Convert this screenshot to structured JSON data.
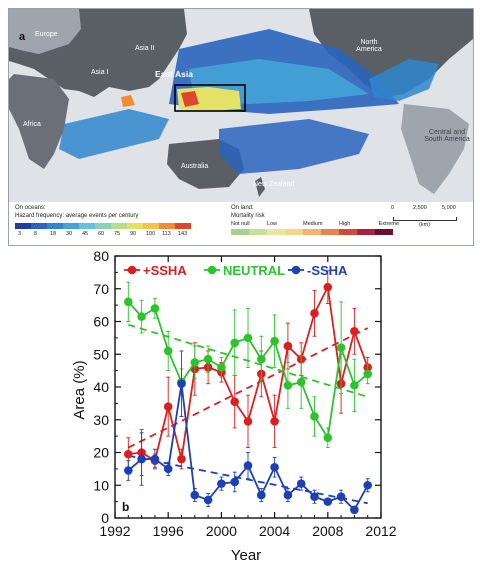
{
  "panel_a": {
    "letter": "a",
    "regions": [
      "Europe",
      "Asia II",
      "Asia I",
      "North America",
      "East Asia",
      "Africa",
      "Australia",
      "Central and South America",
      "New Zealand"
    ],
    "legend": {
      "oceans_title": "On oceans:",
      "oceans_subtitle": "Hazard frequency: average events per century",
      "ocean_ticks": [
        "3",
        "8",
        "18",
        "30",
        "45",
        "60",
        "75",
        "90",
        "100",
        "113",
        "143"
      ],
      "ocean_colors": [
        "#1f3f9c",
        "#2a64bd",
        "#2f86cc",
        "#43a3d6",
        "#67c1d8",
        "#8fd0b8",
        "#b9dc8a",
        "#e3e267",
        "#f6c244",
        "#f28c34",
        "#e0452d"
      ],
      "land_title": "On land:",
      "land_subtitle": "Mortality risk",
      "land_ticks": [
        "Not null",
        "Low",
        "Medium",
        "High",
        "Extreme"
      ],
      "land_colors": [
        "#a9cf8c",
        "#c7e09a",
        "#e8e7a0",
        "#f3d784",
        "#f0b56a",
        "#e48551",
        "#cc4b3c",
        "#a9233a",
        "#6d0d2c"
      ],
      "scale_ticks": [
        "0",
        "2,500",
        "5,000"
      ],
      "scale_unit": "(km)"
    }
  },
  "chart_data": {
    "type": "line",
    "panel_letter": "b",
    "xlabel": "Year",
    "ylabel": "Area (%)",
    "xlim": [
      1992,
      2012
    ],
    "ylim": [
      0,
      80
    ],
    "xticks": [
      1992,
      1996,
      2000,
      2004,
      2008,
      2012
    ],
    "yticks": [
      0,
      10,
      20,
      30,
      40,
      50,
      60,
      70,
      80
    ],
    "x": [
      1993,
      1994,
      1995,
      1996,
      1997,
      1998,
      1999,
      2000,
      2001,
      2002,
      2003,
      2004,
      2005,
      2006,
      2007,
      2008,
      2009,
      2010,
      2011
    ],
    "series": [
      {
        "name": "+SSHA",
        "color": "#d92020",
        "values": [
          19.5,
          20,
          17.5,
          34,
          18,
          45.5,
          46,
          44.5,
          35.5,
          29.5,
          44,
          29.5,
          52.5,
          48.5,
          62.5,
          70.5,
          41,
          57,
          46
        ],
        "error": [
          5,
          7,
          2,
          9,
          3,
          8,
          5,
          3,
          8,
          8,
          7,
          8,
          7,
          5,
          7,
          5,
          9,
          7,
          3
        ],
        "trend": [
          21.5,
          58
        ]
      },
      {
        "name": "NEUTRAL",
        "color": "#2ec22e",
        "values": [
          66,
          61.5,
          64,
          51,
          41.5,
          47.5,
          48.5,
          46,
          53.5,
          55,
          48.5,
          54,
          40.5,
          41.5,
          31,
          24.5,
          52,
          40.5,
          44
        ],
        "error": [
          6,
          5,
          3,
          6,
          4,
          5,
          4,
          3,
          10,
          9,
          7,
          8,
          7,
          8,
          6,
          3,
          14,
          8,
          3
        ],
        "trend": [
          59,
          37
        ]
      },
      {
        "name": "-SSHA",
        "color": "#1f3fb5",
        "values": [
          14.5,
          18,
          18,
          15,
          41,
          7,
          5.5,
          10.5,
          11,
          16,
          7,
          15.5,
          7,
          10.5,
          6.5,
          5,
          6.5,
          2.5,
          10
        ],
        "error": [
          3,
          8,
          3,
          2,
          10,
          2,
          2,
          2,
          3,
          4,
          2,
          3,
          2,
          2,
          2,
          1,
          2,
          1,
          2
        ],
        "trend": [
          19,
          4.5
        ]
      }
    ],
    "legend_position": "top-left"
  }
}
